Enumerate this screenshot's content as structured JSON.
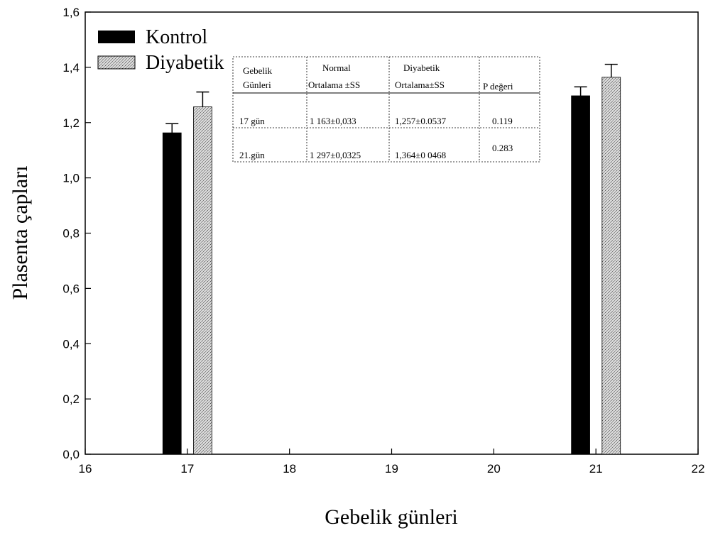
{
  "chart_data": {
    "type": "bar",
    "xlabel": "Gebelik günleri",
    "ylabel": "Plasenta çapları",
    "xlim": [
      16,
      22
    ],
    "ylim": [
      0,
      1.6
    ],
    "xticks": [
      "16",
      "17",
      "18",
      "19",
      "20",
      "21",
      "22"
    ],
    "yticks": [
      "0,0",
      "0,2",
      "0,4",
      "0,6",
      "0,8",
      "1,0",
      "1,2",
      "1,4",
      "1,6"
    ],
    "grid": false,
    "legend_position": "top-left",
    "series": [
      {
        "name": "Kontrol",
        "color": "#000000",
        "points": [
          {
            "x": 17,
            "value": 1.163,
            "error": 0.033
          },
          {
            "x": 21,
            "value": 1.297,
            "error": 0.0325
          }
        ]
      },
      {
        "name": "Diyabetik",
        "color": "#cccccc",
        "pattern": "stippled",
        "points": [
          {
            "x": 17,
            "value": 1.257,
            "error": 0.0537
          },
          {
            "x": 21,
            "value": 1.364,
            "error": 0.0468
          }
        ]
      }
    ],
    "inset_table": {
      "headers": [
        [
          "Gebelik",
          "Günleri"
        ],
        [
          "Normal",
          "Ortalama ±SS"
        ],
        [
          "Diyabetik",
          "Ortalama±SS"
        ],
        [
          "P değeri"
        ]
      ],
      "rows": [
        [
          "17 gün",
          "1 163±0,033",
          "1,257±0.0537",
          "0.119"
        ],
        [
          "21.gün",
          "1 297±0,0325",
          "1,364±0 0468",
          "0.283"
        ]
      ]
    }
  }
}
